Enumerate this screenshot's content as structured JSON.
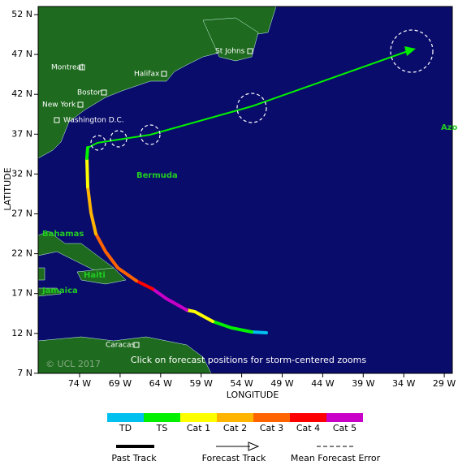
{
  "map": {
    "axes": {
      "x_label": "LONGITUDE",
      "y_label": "LATITUDE",
      "x_ticks": [
        "74 W",
        "69 W",
        "64 W",
        "59 W",
        "54 W",
        "49 W",
        "44 W",
        "39 W",
        "34 W",
        "29 W"
      ],
      "y_ticks": [
        "52 N",
        "47 N",
        "42 N",
        "37 N",
        "32 N",
        "27 N",
        "22 N",
        "17 N",
        "12 N",
        "7 N"
      ]
    },
    "cities": [
      "Montreal",
      "St Johns",
      "Halifax",
      "Boston",
      "New York",
      "Washington D.C.",
      "Caracas"
    ],
    "regions": [
      "Bermuda",
      "Bahamas",
      "Haiti",
      "Jamaica",
      "Azo"
    ],
    "note": "Click on forecast positions for storm-centered zooms",
    "copyright": "© UCL 2017",
    "scale": [
      {
        "label": "TD",
        "color": "#00c0f0"
      },
      {
        "label": "TS",
        "color": "#00f000"
      },
      {
        "label": "Cat 1",
        "color": "#ffff00"
      },
      {
        "label": "Cat 2",
        "color": "#ffb400"
      },
      {
        "label": "Cat 3",
        "color": "#ff6400"
      },
      {
        "label": "Cat 4",
        "color": "#ff0000"
      },
      {
        "label": "Cat 5",
        "color": "#c800c8"
      }
    ],
    "legend": [
      "Past Track",
      "Forecast Track",
      "Mean Forecast Error"
    ]
  }
}
